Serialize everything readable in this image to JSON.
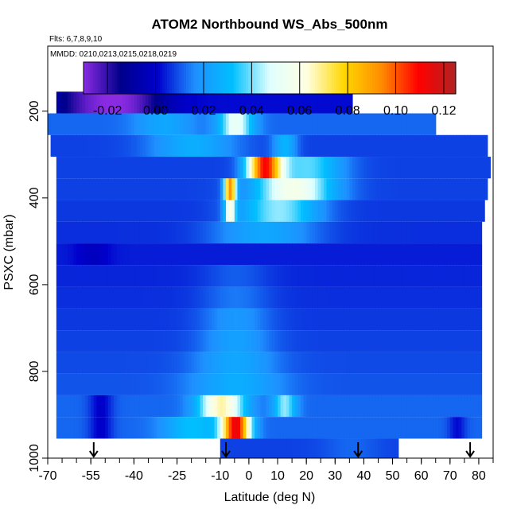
{
  "chart_data": {
    "type": "heatmap",
    "title": "ATOM2 Northbound WS_Abs_500nm",
    "flights_note": "Flts: 6,7,8,9,10",
    "dates_note": "MMDD: 0210,0213,0215,0218,0219",
    "xlabel": "Latitude (deg N)",
    "ylabel": "PSXC (mbar)",
    "xlim": [
      -70,
      85
    ],
    "ylim": [
      1000,
      50
    ],
    "y_reversed": true,
    "grid": false,
    "x_ticks": [
      -70,
      -55,
      -40,
      -25,
      -10,
      0,
      10,
      20,
      30,
      40,
      50,
      60,
      70,
      80
    ],
    "y_ticks": [
      200,
      400,
      600,
      800,
      1000
    ],
    "colorbar": {
      "min": -0.03,
      "max": 0.125,
      "ticks": [
        -0.02,
        0.0,
        0.02,
        0.04,
        0.06,
        0.08,
        0.1,
        0.12
      ],
      "tick_labels": [
        "-0.02",
        "0.00",
        "0.02",
        "0.04",
        "0.06",
        "0.08",
        "0.10",
        "0.12"
      ],
      "colors": [
        "#8a2be2",
        "#00008b",
        "#0000cd",
        "#1e90ff",
        "#00bfff",
        "#e0ffff",
        "#ffffe0",
        "#ffd700",
        "#ff8c00",
        "#ff0000",
        "#b22222"
      ]
    },
    "arrows_lat": [
      -54,
      -8,
      38,
      77
    ],
    "rows": [
      {
        "p": 180,
        "x0": -67,
        "x1": 36,
        "base": 0.002,
        "features": [
          {
            "lat": -55,
            "w": 14,
            "amp": -0.025
          },
          {
            "lat": -40,
            "w": 12,
            "amp": -0.02
          }
        ]
      },
      {
        "p": 230,
        "x0": -70,
        "x1": 65,
        "base": 0.012,
        "features": [
          {
            "lat": -5,
            "w": 6,
            "amp": 0.04
          },
          {
            "lat": -30,
            "w": 10,
            "amp": 0.012
          }
        ]
      },
      {
        "p": 280,
        "x0": -69,
        "x1": 83,
        "base": 0.008,
        "features": [
          {
            "lat": -20,
            "w": 15,
            "amp": 0.018
          },
          {
            "lat": 12,
            "w": 4,
            "amp": 0.02
          }
        ]
      },
      {
        "p": 330,
        "x0": -67,
        "x1": 84,
        "base": 0.008,
        "features": [
          {
            "lat": 5,
            "w": 6,
            "amp": 0.095
          },
          {
            "lat": 20,
            "w": 12,
            "amp": 0.03
          }
        ]
      },
      {
        "p": 380,
        "x0": -67,
        "x1": 83,
        "base": 0.008,
        "features": [
          {
            "lat": -7,
            "w": 2,
            "amp": 0.08
          },
          {
            "lat": 15,
            "w": 14,
            "amp": 0.05
          }
        ]
      },
      {
        "p": 430,
        "x0": -67,
        "x1": 82,
        "base": 0.007,
        "features": [
          {
            "lat": -7,
            "w": 2,
            "amp": 0.045
          },
          {
            "lat": 10,
            "w": 14,
            "amp": 0.035
          }
        ]
      },
      {
        "p": 480,
        "x0": -67,
        "x1": 81,
        "base": 0.006,
        "features": [
          {
            "lat": 5,
            "w": 18,
            "amp": 0.018
          }
        ]
      },
      {
        "p": 530,
        "x0": -67,
        "x1": 81,
        "base": 0.004,
        "features": [
          {
            "lat": -55,
            "w": 6,
            "amp": -0.006
          }
        ]
      },
      {
        "p": 580,
        "x0": -67,
        "x1": 81,
        "base": 0.005,
        "features": [
          {
            "lat": -5,
            "w": 12,
            "amp": 0.006
          }
        ]
      },
      {
        "p": 630,
        "x0": -67,
        "x1": 81,
        "base": 0.006,
        "features": [
          {
            "lat": -5,
            "w": 12,
            "amp": 0.008
          }
        ]
      },
      {
        "p": 680,
        "x0": -67,
        "x1": 81,
        "base": 0.007,
        "features": [
          {
            "lat": -5,
            "w": 12,
            "amp": 0.012
          }
        ]
      },
      {
        "p": 730,
        "x0": -67,
        "x1": 81,
        "base": 0.008,
        "features": [
          {
            "lat": -5,
            "w": 12,
            "amp": 0.014
          }
        ]
      },
      {
        "p": 780,
        "x0": -67,
        "x1": 81,
        "base": 0.009,
        "features": [
          {
            "lat": -5,
            "w": 14,
            "amp": 0.015
          }
        ]
      },
      {
        "p": 830,
        "x0": -67,
        "x1": 81,
        "base": 0.01,
        "features": [
          {
            "lat": -5,
            "w": 16,
            "amp": 0.016
          }
        ]
      },
      {
        "p": 880,
        "x0": -67,
        "x1": 81,
        "base": 0.012,
        "features": [
          {
            "lat": -10,
            "w": 8,
            "amp": 0.055
          },
          {
            "lat": 12,
            "w": 4,
            "amp": 0.03
          },
          {
            "lat": -52,
            "w": 4,
            "amp": -0.012
          }
        ]
      },
      {
        "p": 930,
        "x0": -67,
        "x1": 81,
        "base": 0.012,
        "features": [
          {
            "lat": -5,
            "w": 5,
            "amp": 0.1
          },
          {
            "lat": -20,
            "w": 10,
            "amp": 0.02
          },
          {
            "lat": -52,
            "w": 4,
            "amp": -0.012
          },
          {
            "lat": 72,
            "w": 3,
            "amp": -0.01
          }
        ]
      },
      {
        "p": 980,
        "x0": -10,
        "x1": 52,
        "base": 0.008,
        "features": [
          {
            "lat": 35,
            "w": 10,
            "amp": 0.004
          }
        ]
      }
    ]
  }
}
